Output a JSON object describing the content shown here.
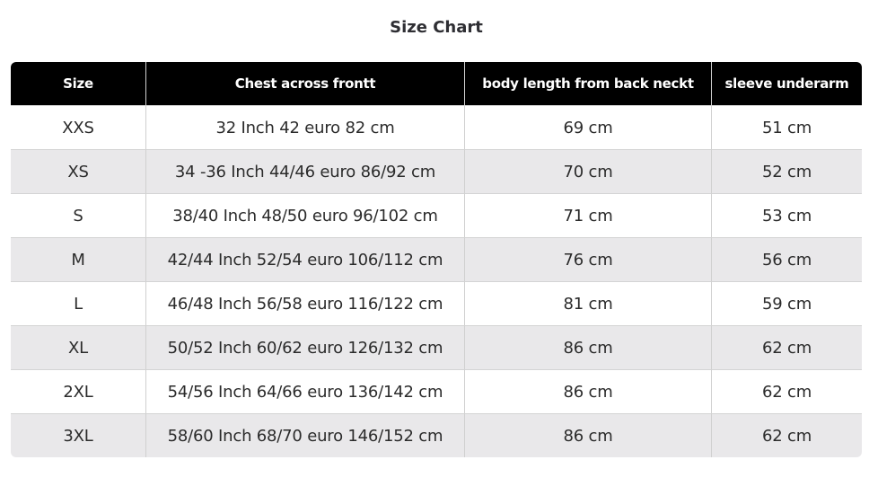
{
  "title": "Size Chart",
  "columns": [
    "Size",
    "Chest across frontt",
    "body length from back neckt",
    "sleeve underarm"
  ],
  "rows": [
    [
      "XXS",
      "32 Inch 42 euro 82 cm",
      "69 cm",
      "51 cm"
    ],
    [
      "XS",
      "34 -36 Inch 44/46 euro 86/92 cm",
      "70 cm",
      "52 cm"
    ],
    [
      "S",
      "38/40 Inch 48/50 euro 96/102 cm",
      "71 cm",
      "53 cm"
    ],
    [
      "M",
      "42/44 Inch 52/54 euro 106/112 cm",
      "76 cm",
      "56 cm"
    ],
    [
      "L",
      "46/48 Inch 56/58 euro 116/122 cm",
      "81 cm",
      "59 cm"
    ],
    [
      "XL",
      "50/52 Inch 60/62 euro 126/132 cm",
      "86 cm",
      "62 cm"
    ],
    [
      "2XL",
      "54/56 Inch 64/66 euro 136/142 cm",
      "86 cm",
      "62 cm"
    ],
    [
      "3XL",
      "58/60 Inch 68/70 euro 146/152 cm",
      "86 cm",
      "62 cm"
    ]
  ]
}
